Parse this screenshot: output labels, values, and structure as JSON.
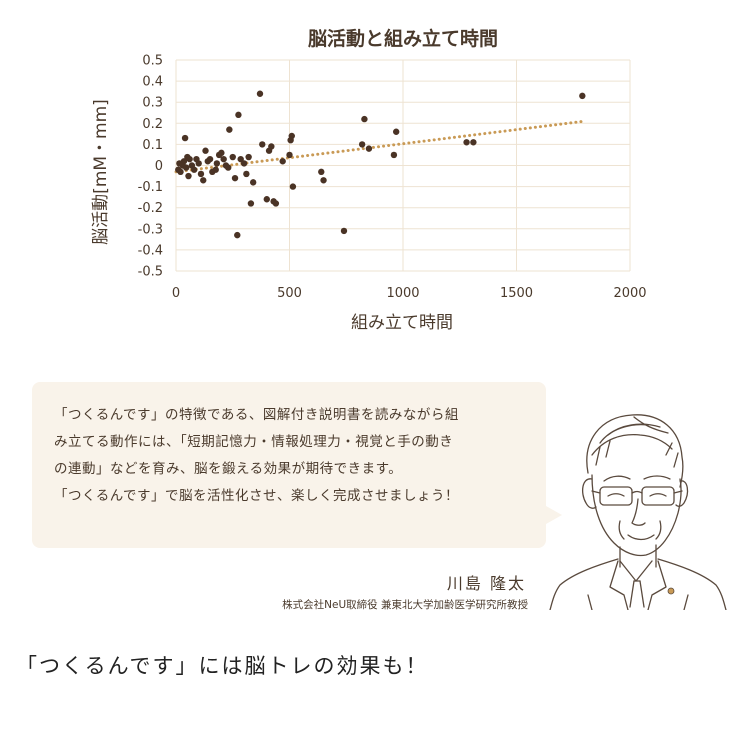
{
  "chart_data": {
    "type": "scatter",
    "title": "脳活動と組み立て時間",
    "xlabel": "組み立て時間",
    "ylabel": "脳活動[mM・mm]",
    "xlim": [
      0,
      2000
    ],
    "ylim": [
      -0.5,
      0.5
    ],
    "x_ticks": [
      "0",
      "500",
      "1000",
      "1500",
      "2000"
    ],
    "y_ticks": [
      "0.5",
      "0.4",
      "0.3",
      "0.2",
      "0.1",
      "0",
      "-0.1",
      "-0.2",
      "-0.3",
      "-0.4",
      "-0.5"
    ],
    "grid": true,
    "trendline": {
      "x": [
        0,
        1800
      ],
      "y": [
        -0.03,
        0.21
      ],
      "style": "dotted",
      "color": "#c99a55"
    },
    "point_color": "#4a3325",
    "points": [
      {
        "x": 10,
        "y": -0.02
      },
      {
        "x": 15,
        "y": 0.01
      },
      {
        "x": 20,
        "y": -0.03
      },
      {
        "x": 30,
        "y": 0.0
      },
      {
        "x": 35,
        "y": 0.02
      },
      {
        "x": 40,
        "y": 0.13
      },
      {
        "x": 45,
        "y": -0.01
      },
      {
        "x": 50,
        "y": 0.04
      },
      {
        "x": 55,
        "y": -0.05
      },
      {
        "x": 60,
        "y": 0.03
      },
      {
        "x": 70,
        "y": 0.0
      },
      {
        "x": 80,
        "y": -0.02
      },
      {
        "x": 90,
        "y": 0.03
      },
      {
        "x": 100,
        "y": 0.01
      },
      {
        "x": 110,
        "y": -0.04
      },
      {
        "x": 120,
        "y": -0.07
      },
      {
        "x": 130,
        "y": 0.07
      },
      {
        "x": 140,
        "y": 0.02
      },
      {
        "x": 150,
        "y": 0.03
      },
      {
        "x": 160,
        "y": -0.03
      },
      {
        "x": 175,
        "y": -0.02
      },
      {
        "x": 180,
        "y": 0.01
      },
      {
        "x": 190,
        "y": 0.05
      },
      {
        "x": 200,
        "y": 0.06
      },
      {
        "x": 210,
        "y": 0.03
      },
      {
        "x": 220,
        "y": 0.0
      },
      {
        "x": 230,
        "y": -0.01
      },
      {
        "x": 235,
        "y": 0.17
      },
      {
        "x": 250,
        "y": 0.04
      },
      {
        "x": 260,
        "y": -0.06
      },
      {
        "x": 270,
        "y": -0.33
      },
      {
        "x": 275,
        "y": 0.24
      },
      {
        "x": 285,
        "y": 0.03
      },
      {
        "x": 300,
        "y": 0.01
      },
      {
        "x": 310,
        "y": -0.04
      },
      {
        "x": 320,
        "y": 0.04
      },
      {
        "x": 330,
        "y": -0.18
      },
      {
        "x": 340,
        "y": -0.08
      },
      {
        "x": 370,
        "y": 0.34
      },
      {
        "x": 380,
        "y": 0.1
      },
      {
        "x": 400,
        "y": -0.16
      },
      {
        "x": 410,
        "y": 0.07
      },
      {
        "x": 420,
        "y": 0.09
      },
      {
        "x": 430,
        "y": -0.17
      },
      {
        "x": 440,
        "y": -0.18
      },
      {
        "x": 470,
        "y": 0.02
      },
      {
        "x": 500,
        "y": 0.05
      },
      {
        "x": 505,
        "y": 0.12
      },
      {
        "x": 510,
        "y": 0.14
      },
      {
        "x": 515,
        "y": -0.1
      },
      {
        "x": 640,
        "y": -0.03
      },
      {
        "x": 650,
        "y": -0.07
      },
      {
        "x": 740,
        "y": -0.31
      },
      {
        "x": 820,
        "y": 0.1
      },
      {
        "x": 830,
        "y": 0.22
      },
      {
        "x": 850,
        "y": 0.08
      },
      {
        "x": 960,
        "y": 0.05
      },
      {
        "x": 970,
        "y": 0.16
      },
      {
        "x": 1280,
        "y": 0.11
      },
      {
        "x": 1310,
        "y": 0.11
      },
      {
        "x": 1790,
        "y": 0.33
      }
    ]
  },
  "message": {
    "lines": [
      "「つくるんです」の特徴である、図解付き説明書を読みながら組",
      "み立てる動作には、「短期記憶力・情報処理力・視覚と手の動き",
      "の連動」などを育み、脳を鍛える効果が期待できます。",
      "「つくるんです」で脳を活性化させ、楽しく完成させましょう！"
    ]
  },
  "person": {
    "name": "川島 隆太",
    "title": "株式会社NeU取締役 兼東北大学加齢医学研究所教授"
  },
  "tagline": "「つくるんです」には脳トレの効果も！"
}
